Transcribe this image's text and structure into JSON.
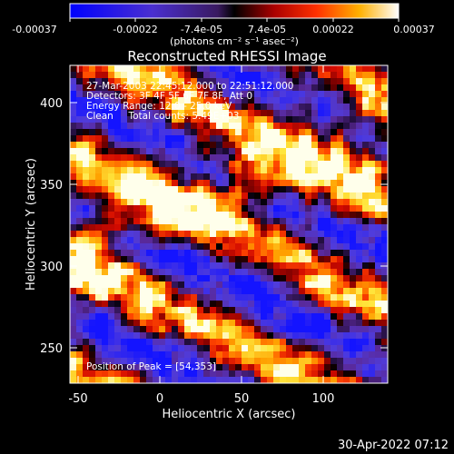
{
  "colorbar": {
    "ticks": [
      "-0.00037",
      "-0.00022",
      "-7.4e-05",
      "7.4e-05",
      "0.00022",
      "0.00037"
    ],
    "unit_label": "(photons cm⁻² s⁻¹ asec⁻²)"
  },
  "footer": {
    "timestamp": "30-Apr-2022 07:12"
  },
  "info": {
    "time_range": "27-Mar-2003 22:45:12.000 to 22:51:12.000",
    "detectors": "Detectors: 3F 4F 5F 6F 7F 8F, Att 0",
    "energy": "Energy Range: 12.0 - 25.0 keV",
    "method": "Clean     Total counts: 5.49E+03",
    "peak": "Position of Peak = [54,353]"
  },
  "chart_data": {
    "type": "heatmap",
    "title": "Reconstructed RHESSI Image",
    "xlabel": "Heliocentric X (arcsec)",
    "ylabel": "Heliocentric Y (arcsec)",
    "xlim": [
      -55,
      138
    ],
    "ylim": [
      228,
      422
    ],
    "xticks": [
      -50,
      0,
      50,
      100
    ],
    "yticks": [
      250,
      300,
      350,
      400
    ],
    "colormap": "blue-purple-black-red-orange-yellow-white",
    "zlim": [
      -0.00037,
      0.00037
    ],
    "peak_position": [
      54,
      353
    ],
    "colors": {
      "positive_max": "#fffff0",
      "negative_max": "#1a1aff"
    }
  }
}
